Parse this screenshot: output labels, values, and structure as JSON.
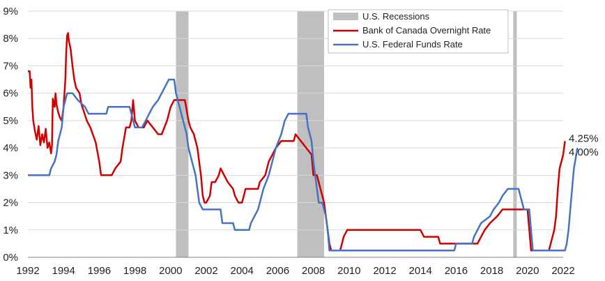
{
  "chart_data": {
    "type": "line",
    "xlim": [
      1992,
      2022
    ],
    "ylim": [
      0,
      9
    ],
    "x_ticks": [
      "1992",
      "1994",
      "1996",
      "1998",
      "2000",
      "2002",
      "2004",
      "2006",
      "2008",
      "2010",
      "2012",
      "2014",
      "2016",
      "2018",
      "2020",
      "2022"
    ],
    "y_ticks": [
      "0%",
      "1%",
      "2%",
      "3%",
      "4%",
      "5%",
      "6%",
      "7%",
      "8%",
      "9%"
    ],
    "grid": "horizontal",
    "legend_position": "top-center",
    "recessions": {
      "name": "U.S. Recessions",
      "color": "#bfbfbf",
      "periods": [
        [
          2000.3,
          2001.0
        ],
        [
          2007.1,
          2008.6
        ],
        [
          2019.2,
          2019.4
        ]
      ]
    },
    "series": [
      {
        "name": "Bank of Canada Overnight Rate",
        "color": "#d00000",
        "end_label": "4.25%",
        "points": [
          [
            1992.0,
            6.8
          ],
          [
            1992.1,
            6.8
          ],
          [
            1992.15,
            6.2
          ],
          [
            1992.2,
            6.5
          ],
          [
            1992.25,
            5.5
          ],
          [
            1992.3,
            5.0
          ],
          [
            1992.4,
            4.6
          ],
          [
            1992.5,
            4.3
          ],
          [
            1992.6,
            4.8
          ],
          [
            1992.7,
            4.1
          ],
          [
            1992.8,
            4.5
          ],
          [
            1992.9,
            4.2
          ],
          [
            1993.0,
            4.7
          ],
          [
            1993.1,
            4.0
          ],
          [
            1993.2,
            4.2
          ],
          [
            1993.3,
            3.8
          ],
          [
            1993.35,
            4.1
          ],
          [
            1993.4,
            5.8
          ],
          [
            1993.5,
            5.5
          ],
          [
            1993.55,
            6.0
          ],
          [
            1993.6,
            5.6
          ],
          [
            1993.7,
            5.3
          ],
          [
            1993.8,
            5.1
          ],
          [
            1993.9,
            5.0
          ],
          [
            1994.0,
            5.5
          ],
          [
            1994.1,
            6.5
          ],
          [
            1994.15,
            7.5
          ],
          [
            1994.2,
            8.1
          ],
          [
            1994.25,
            8.2
          ],
          [
            1994.3,
            7.9
          ],
          [
            1994.4,
            7.6
          ],
          [
            1994.5,
            7.0
          ],
          [
            1994.6,
            6.5
          ],
          [
            1994.7,
            6.2
          ],
          [
            1994.9,
            6.0
          ],
          [
            1995.0,
            5.6
          ],
          [
            1995.1,
            5.4
          ],
          [
            1995.3,
            5.0
          ],
          [
            1995.5,
            4.75
          ],
          [
            1995.8,
            4.2
          ],
          [
            1996.0,
            3.5
          ],
          [
            1996.1,
            3.0
          ],
          [
            1996.5,
            3.0
          ],
          [
            1996.7,
            3.0
          ],
          [
            1996.9,
            3.25
          ],
          [
            1997.2,
            3.5
          ],
          [
            1997.3,
            4.0
          ],
          [
            1997.5,
            4.75
          ],
          [
            1997.7,
            4.75
          ],
          [
            1997.8,
            5.0
          ],
          [
            1997.9,
            5.75
          ],
          [
            1998.0,
            5.0
          ],
          [
            1998.2,
            4.75
          ],
          [
            1998.5,
            4.75
          ],
          [
            1998.7,
            5.0
          ],
          [
            1999.0,
            4.75
          ],
          [
            1999.3,
            4.5
          ],
          [
            1999.5,
            4.5
          ],
          [
            1999.8,
            5.0
          ],
          [
            2000.0,
            5.5
          ],
          [
            2000.2,
            5.75
          ],
          [
            2000.8,
            5.75
          ],
          [
            2001.0,
            5.0
          ],
          [
            2001.1,
            4.75
          ],
          [
            2001.3,
            4.5
          ],
          [
            2001.5,
            4.0
          ],
          [
            2001.7,
            3.0
          ],
          [
            2001.8,
            2.25
          ],
          [
            2001.9,
            2.0
          ],
          [
            2002.0,
            2.0
          ],
          [
            2002.2,
            2.25
          ],
          [
            2002.3,
            2.75
          ],
          [
            2002.5,
            2.75
          ],
          [
            2002.7,
            3.0
          ],
          [
            2002.8,
            3.25
          ],
          [
            2003.0,
            3.0
          ],
          [
            2003.2,
            2.75
          ],
          [
            2003.5,
            2.5
          ],
          [
            2003.6,
            2.25
          ],
          [
            2003.8,
            2.0
          ],
          [
            2004.0,
            2.0
          ],
          [
            2004.1,
            2.25
          ],
          [
            2004.2,
            2.5
          ],
          [
            2004.9,
            2.5
          ],
          [
            2005.0,
            2.75
          ],
          [
            2005.3,
            3.0
          ],
          [
            2005.5,
            3.5
          ],
          [
            2005.7,
            3.75
          ],
          [
            2005.9,
            4.0
          ],
          [
            2006.2,
            4.25
          ],
          [
            2006.9,
            4.25
          ],
          [
            2007.0,
            4.5
          ],
          [
            2007.3,
            4.25
          ],
          [
            2007.6,
            4.0
          ],
          [
            2007.9,
            3.75
          ],
          [
            2008.0,
            3.0
          ],
          [
            2008.2,
            3.0
          ],
          [
            2008.4,
            2.5
          ],
          [
            2008.6,
            2.0
          ],
          [
            2008.8,
            1.0
          ],
          [
            2008.9,
            0.5
          ],
          [
            2009.0,
            0.25
          ],
          [
            2009.5,
            0.25
          ],
          [
            2009.6,
            0.5
          ],
          [
            2009.7,
            0.75
          ],
          [
            2009.9,
            1.0
          ],
          [
            2014.0,
            1.0
          ],
          [
            2014.2,
            0.75
          ],
          [
            2015.0,
            0.75
          ],
          [
            2015.1,
            0.5
          ],
          [
            2017.2,
            0.5
          ],
          [
            2017.4,
            0.75
          ],
          [
            2017.6,
            1.0
          ],
          [
            2017.9,
            1.25
          ],
          [
            2018.3,
            1.5
          ],
          [
            2018.6,
            1.75
          ],
          [
            2020.0,
            1.75
          ],
          [
            2020.1,
            1.0
          ],
          [
            2020.2,
            0.25
          ],
          [
            2021.2,
            0.25
          ],
          [
            2021.3,
            0.5
          ],
          [
            2021.5,
            1.0
          ],
          [
            2021.6,
            1.5
          ],
          [
            2021.7,
            2.5
          ],
          [
            2021.8,
            3.25
          ],
          [
            2022.0,
            3.75
          ],
          [
            2022.1,
            4.25
          ]
        ]
      },
      {
        "name": "U.S. Federal Funds Rate",
        "color": "#4472c4",
        "end_label": "4.00%",
        "points": [
          [
            1992.0,
            3.0
          ],
          [
            1993.2,
            3.0
          ],
          [
            1993.3,
            3.25
          ],
          [
            1993.5,
            3.5
          ],
          [
            1993.6,
            3.75
          ],
          [
            1993.7,
            4.25
          ],
          [
            1993.9,
            4.75
          ],
          [
            1994.0,
            5.5
          ],
          [
            1994.2,
            6.0
          ],
          [
            1994.5,
            6.0
          ],
          [
            1994.8,
            5.75
          ],
          [
            1995.2,
            5.5
          ],
          [
            1995.4,
            5.25
          ],
          [
            1996.4,
            5.25
          ],
          [
            1996.5,
            5.5
          ],
          [
            1997.7,
            5.5
          ],
          [
            1997.8,
            5.25
          ],
          [
            1998.0,
            4.75
          ],
          [
            1998.4,
            4.75
          ],
          [
            1998.6,
            5.0
          ],
          [
            1998.8,
            5.25
          ],
          [
            1999.0,
            5.5
          ],
          [
            1999.3,
            5.75
          ],
          [
            1999.5,
            6.0
          ],
          [
            1999.7,
            6.25
          ],
          [
            1999.9,
            6.5
          ],
          [
            2000.2,
            6.5
          ],
          [
            2000.3,
            6.0
          ],
          [
            2000.5,
            5.5
          ],
          [
            2000.7,
            5.0
          ],
          [
            2000.9,
            4.5
          ],
          [
            2001.0,
            4.0
          ],
          [
            2001.2,
            3.5
          ],
          [
            2001.4,
            3.0
          ],
          [
            2001.5,
            2.5
          ],
          [
            2001.6,
            2.0
          ],
          [
            2001.8,
            1.75
          ],
          [
            2002.8,
            1.75
          ],
          [
            2002.9,
            1.25
          ],
          [
            2003.5,
            1.25
          ],
          [
            2003.6,
            1.0
          ],
          [
            2004.4,
            1.0
          ],
          [
            2004.5,
            1.25
          ],
          [
            2004.7,
            1.5
          ],
          [
            2004.9,
            1.75
          ],
          [
            2005.0,
            2.0
          ],
          [
            2005.2,
            2.5
          ],
          [
            2005.5,
            3.0
          ],
          [
            2005.7,
            3.5
          ],
          [
            2005.9,
            4.0
          ],
          [
            2006.2,
            4.5
          ],
          [
            2006.4,
            5.0
          ],
          [
            2006.6,
            5.25
          ],
          [
            2007.6,
            5.25
          ],
          [
            2007.7,
            4.75
          ],
          [
            2007.9,
            4.25
          ],
          [
            2008.0,
            3.5
          ],
          [
            2008.1,
            3.0
          ],
          [
            2008.3,
            2.0
          ],
          [
            2008.5,
            2.0
          ],
          [
            2008.7,
            1.5
          ],
          [
            2008.8,
            1.0
          ],
          [
            2008.9,
            0.25
          ],
          [
            2015.9,
            0.25
          ],
          [
            2016.0,
            0.5
          ],
          [
            2016.9,
            0.5
          ],
          [
            2017.0,
            0.75
          ],
          [
            2017.2,
            1.0
          ],
          [
            2017.4,
            1.25
          ],
          [
            2017.9,
            1.5
          ],
          [
            2018.1,
            1.75
          ],
          [
            2018.4,
            2.0
          ],
          [
            2018.6,
            2.25
          ],
          [
            2018.9,
            2.5
          ],
          [
            2019.5,
            2.5
          ],
          [
            2019.6,
            2.25
          ],
          [
            2019.7,
            2.0
          ],
          [
            2019.8,
            1.75
          ],
          [
            2020.1,
            1.75
          ],
          [
            2020.2,
            1.0
          ],
          [
            2020.3,
            0.25
          ],
          [
            2022.1,
            0.25
          ],
          [
            2022.2,
            0.5
          ],
          [
            2022.3,
            1.0
          ],
          [
            2022.4,
            1.75
          ],
          [
            2022.5,
            2.5
          ],
          [
            2022.6,
            3.25
          ],
          [
            2022.8,
            4.0
          ]
        ]
      }
    ]
  }
}
